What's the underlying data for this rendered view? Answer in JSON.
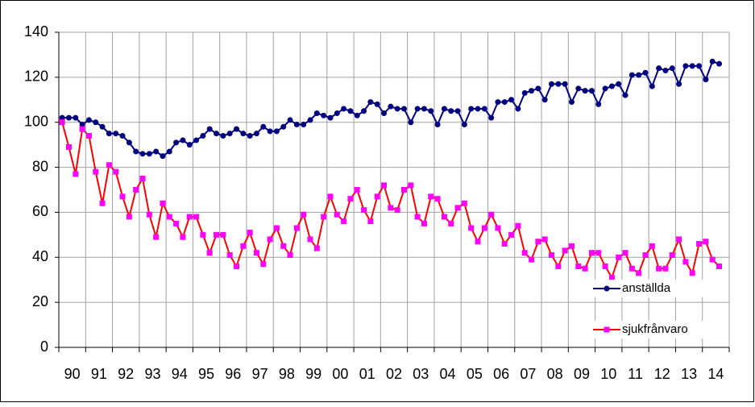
{
  "chart_data": {
    "type": "line",
    "categories": [
      "90",
      null,
      null,
      null,
      "91",
      null,
      null,
      null,
      "92",
      null,
      null,
      null,
      "93",
      null,
      null,
      null,
      "94",
      null,
      null,
      null,
      "95",
      null,
      null,
      null,
      "96",
      null,
      null,
      null,
      "97",
      null,
      null,
      null,
      "98",
      null,
      null,
      null,
      "99",
      null,
      null,
      null,
      "00",
      null,
      null,
      null,
      "01",
      null,
      null,
      null,
      "02",
      null,
      null,
      null,
      "03",
      null,
      null,
      null,
      "04",
      null,
      null,
      null,
      "05",
      null,
      null,
      null,
      "06",
      null,
      null,
      null,
      "07",
      null,
      null,
      null,
      "08",
      null,
      null,
      null,
      "09",
      null,
      null,
      null,
      "10",
      null,
      null,
      null,
      "11",
      null,
      null,
      null,
      "12",
      null,
      null,
      null,
      "13",
      null,
      null,
      null,
      "14",
      null,
      null
    ],
    "series": [
      {
        "name": "anställda",
        "color": "#000080",
        "marker": "circle",
        "marker_color": "#000080",
        "values": [
          102,
          102,
          102,
          99,
          101,
          100,
          98,
          95,
          95,
          94,
          91,
          87,
          86,
          86,
          87,
          85,
          87,
          91,
          92,
          90,
          92,
          94,
          97,
          95,
          94,
          95,
          97,
          95,
          94,
          95,
          98,
          96,
          96,
          98,
          101,
          99,
          99,
          101,
          104,
          103,
          102,
          104,
          106,
          105,
          103,
          105,
          109,
          108,
          104,
          107,
          106,
          106,
          100,
          106,
          106,
          105,
          99,
          106,
          105,
          105,
          99,
          106,
          106,
          106,
          102,
          109,
          109,
          110,
          106,
          113,
          114,
          115,
          110,
          117,
          117,
          117,
          109,
          115,
          114,
          114,
          108,
          115,
          116,
          117,
          112,
          121,
          121,
          122,
          116,
          124,
          123,
          124,
          117,
          125,
          125,
          125,
          119,
          127,
          126
        ]
      },
      {
        "name": "sjukfrånvaro",
        "color": "#ff0000",
        "marker": "square",
        "marker_color": "#ff00ff",
        "values": [
          100,
          89,
          77,
          97,
          94,
          78,
          64,
          81,
          78,
          67,
          58,
          70,
          75,
          59,
          49,
          64,
          58,
          55,
          49,
          58,
          58,
          50,
          42,
          50,
          50,
          41,
          36,
          45,
          51,
          42,
          37,
          48,
          53,
          45,
          41,
          53,
          59,
          48,
          44,
          58,
          67,
          59,
          56,
          66,
          70,
          61,
          56,
          67,
          72,
          62,
          61,
          70,
          72,
          58,
          55,
          67,
          66,
          58,
          55,
          62,
          64,
          53,
          47,
          53,
          59,
          53,
          46,
          50,
          54,
          42,
          39,
          47,
          48,
          41,
          36,
          43,
          45,
          36,
          35,
          42,
          42,
          36,
          31,
          40,
          42,
          35,
          33,
          41,
          45,
          35,
          35,
          41,
          48,
          38,
          33,
          46,
          47,
          39,
          36
        ]
      }
    ],
    "ylim": [
      0,
      140
    ],
    "yticks": [
      0,
      20,
      40,
      60,
      80,
      100,
      120,
      140
    ],
    "grid": true,
    "legend": "lower right"
  }
}
